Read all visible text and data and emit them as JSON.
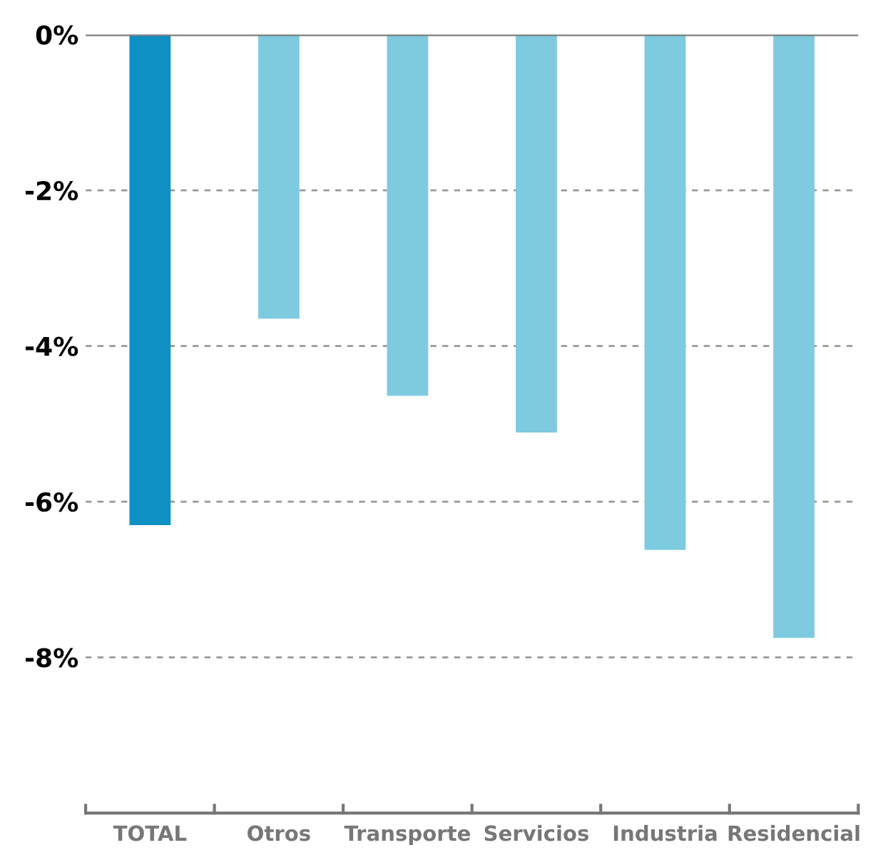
{
  "chart_data": {
    "type": "bar",
    "categories": [
      "TOTAL",
      "Otros",
      "Transporte",
      "Servicios",
      "Industria",
      "Residencial"
    ],
    "values": [
      -6.3,
      -3.65,
      -4.64,
      -5.11,
      -6.62,
      -7.75
    ],
    "colors": [
      "#0e90c4",
      "#7ecbe0",
      "#7ecbe0",
      "#7ecbe0",
      "#7ecbe0",
      "#7ecbe0"
    ],
    "ylim": [
      -10,
      0
    ],
    "yticks": [
      {
        "value": 0,
        "label": "0%"
      },
      {
        "value": -2,
        "label": "-2%"
      },
      {
        "value": -4,
        "label": "-4%"
      },
      {
        "value": -6,
        "label": "-6%"
      },
      {
        "value": -8,
        "label": "-8%"
      }
    ],
    "ref_lines": [
      {
        "axis": "y",
        "value": 0,
        "color": "#808080",
        "line_style": "solid"
      }
    ],
    "grid": "y"
  }
}
